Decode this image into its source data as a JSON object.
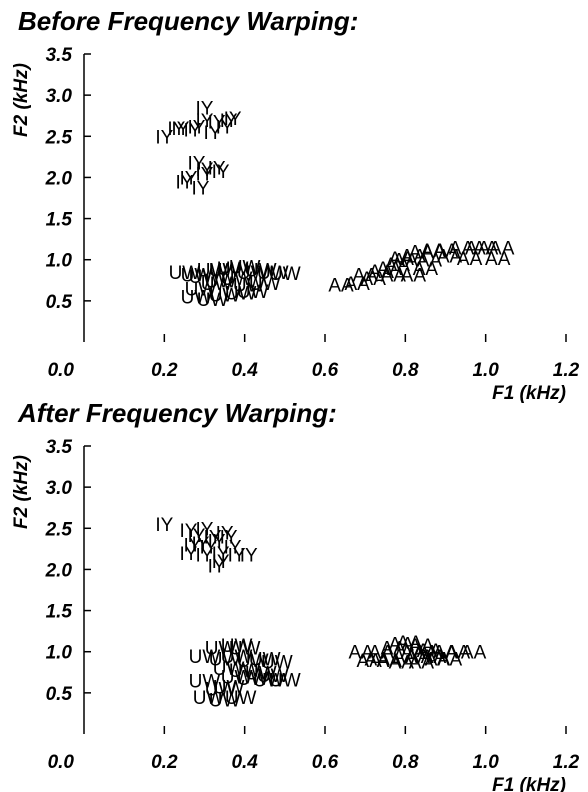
{
  "chart_data": [
    {
      "type": "scatter",
      "title": "Before Frequency Warping:",
      "xlabel": "F1 (kHz)",
      "ylabel": "F2 (kHz)",
      "xlim": [
        0.0,
        1.2
      ],
      "ylim": [
        0.0,
        3.5
      ],
      "xticks": [
        "0.0",
        "0.2",
        "0.4",
        "0.6",
        "0.8",
        "1.0",
        "1.2"
      ],
      "yticks": [
        "0.5",
        "1.0",
        "1.5",
        "2.0",
        "2.5",
        "3.0",
        "3.5"
      ],
      "series": [
        {
          "name": "IY",
          "points": [
            [
              0.3,
              2.85
            ],
            [
              0.3,
              2.7
            ],
            [
              0.36,
              2.7
            ],
            [
              0.37,
              2.72
            ],
            [
              0.24,
              2.6
            ],
            [
              0.33,
              2.68
            ],
            [
              0.28,
              2.62
            ],
            [
              0.35,
              2.62
            ],
            [
              0.2,
              2.5
            ],
            [
              0.23,
              2.6
            ],
            [
              0.32,
              2.55
            ],
            [
              0.27,
              2.58
            ],
            [
              0.3,
              2.1
            ],
            [
              0.33,
              2.12
            ],
            [
              0.28,
              2.18
            ],
            [
              0.34,
              2.08
            ],
            [
              0.26,
              2.0
            ],
            [
              0.25,
              1.95
            ],
            [
              0.29,
              1.88
            ],
            [
              0.3,
              2.05
            ]
          ]
        },
        {
          "name": "UW",
          "points": [
            [
              0.25,
              0.85
            ],
            [
              0.28,
              0.82
            ],
            [
              0.3,
              0.8
            ],
            [
              0.32,
              0.88
            ],
            [
              0.35,
              0.88
            ],
            [
              0.37,
              0.9
            ],
            [
              0.4,
              0.92
            ],
            [
              0.42,
              0.85
            ],
            [
              0.44,
              0.88
            ],
            [
              0.47,
              0.85
            ],
            [
              0.5,
              0.84
            ],
            [
              0.34,
              0.75
            ],
            [
              0.38,
              0.78
            ],
            [
              0.41,
              0.7
            ],
            [
              0.45,
              0.72
            ],
            [
              0.33,
              0.72
            ],
            [
              0.28,
              0.55
            ],
            [
              0.32,
              0.52
            ],
            [
              0.35,
              0.58
            ],
            [
              0.39,
              0.6
            ],
            [
              0.42,
              0.62
            ],
            [
              0.29,
              0.65
            ]
          ]
        },
        {
          "name": "AA",
          "points": [
            [
              0.64,
              0.7
            ],
            [
              0.68,
              0.72
            ],
            [
              0.7,
              0.82
            ],
            [
              0.74,
              0.86
            ],
            [
              0.76,
              0.9
            ],
            [
              0.78,
              0.95
            ],
            [
              0.8,
              1.0
            ],
            [
              0.82,
              1.05
            ],
            [
              0.84,
              1.1
            ],
            [
              0.87,
              1.12
            ],
            [
              0.9,
              1.12
            ],
            [
              0.94,
              1.15
            ],
            [
              0.98,
              1.15
            ],
            [
              1.0,
              1.15
            ],
            [
              1.04,
              1.15
            ],
            [
              1.03,
              1.02
            ],
            [
              0.72,
              0.78
            ],
            [
              0.77,
              0.82
            ],
            [
              0.85,
              0.9
            ],
            [
              0.79,
              1.02
            ],
            [
              0.86,
              1.0
            ],
            [
              0.91,
              1.05
            ],
            [
              0.96,
              1.02
            ],
            [
              0.82,
              0.82
            ]
          ]
        }
      ]
    },
    {
      "type": "scatter",
      "title": "After Frequency Warping:",
      "xlabel": "F1 (kHz)",
      "ylabel": "F2 (kHz)",
      "xlim": [
        0.0,
        1.2
      ],
      "ylim": [
        0.0,
        3.5
      ],
      "xticks": [
        "0.0",
        "0.2",
        "0.4",
        "0.6",
        "0.8",
        "1.0",
        "1.2"
      ],
      "yticks": [
        "0.5",
        "1.0",
        "1.5",
        "2.0",
        "2.5",
        "3.0",
        "3.5"
      ],
      "series": [
        {
          "name": "IY",
          "points": [
            [
              0.2,
              2.55
            ],
            [
              0.26,
              2.48
            ],
            [
              0.3,
              2.5
            ],
            [
              0.28,
              2.42
            ],
            [
              0.32,
              2.4
            ],
            [
              0.35,
              2.45
            ],
            [
              0.36,
              2.4
            ],
            [
              0.33,
              2.35
            ],
            [
              0.27,
              2.3
            ],
            [
              0.31,
              2.28
            ],
            [
              0.37,
              2.28
            ],
            [
              0.26,
              2.2
            ],
            [
              0.3,
              2.18
            ],
            [
              0.34,
              2.2
            ],
            [
              0.38,
              2.18
            ],
            [
              0.41,
              2.18
            ],
            [
              0.29,
              2.32
            ],
            [
              0.34,
              2.1
            ],
            [
              0.33,
              2.05
            ]
          ]
        },
        {
          "name": "UW",
          "points": [
            [
              0.34,
              1.05
            ],
            [
              0.38,
              1.08
            ],
            [
              0.4,
              1.05
            ],
            [
              0.3,
              0.95
            ],
            [
              0.35,
              0.92
            ],
            [
              0.38,
              0.95
            ],
            [
              0.42,
              0.9
            ],
            [
              0.45,
              0.92
            ],
            [
              0.48,
              0.88
            ],
            [
              0.36,
              0.8
            ],
            [
              0.4,
              0.78
            ],
            [
              0.44,
              0.75
            ],
            [
              0.47,
              0.72
            ],
            [
              0.38,
              0.7
            ],
            [
              0.42,
              0.68
            ],
            [
              0.46,
              0.66
            ],
            [
              0.5,
              0.66
            ],
            [
              0.3,
              0.65
            ],
            [
              0.34,
              0.55
            ],
            [
              0.36,
              0.58
            ],
            [
              0.31,
              0.45
            ],
            [
              0.35,
              0.42
            ],
            [
              0.39,
              0.45
            ]
          ]
        },
        {
          "name": "AA",
          "points": [
            [
              0.69,
              1.0
            ],
            [
              0.71,
              0.9
            ],
            [
              0.74,
              1.0
            ],
            [
              0.77,
              1.05
            ],
            [
              0.79,
              1.1
            ],
            [
              0.81,
              1.12
            ],
            [
              0.84,
              1.08
            ],
            [
              0.86,
              1.02
            ],
            [
              0.8,
              0.95
            ],
            [
              0.83,
              0.95
            ],
            [
              0.87,
              0.95
            ],
            [
              0.9,
              1.0
            ],
            [
              0.93,
              1.0
            ],
            [
              0.97,
              1.0
            ],
            [
              0.76,
              0.9
            ],
            [
              0.79,
              0.88
            ],
            [
              0.84,
              0.88
            ],
            [
              0.88,
              0.92
            ],
            [
              0.91,
              0.92
            ],
            [
              0.82,
              1.0
            ],
            [
              0.85,
              1.0
            ],
            [
              0.73,
              0.92
            ]
          ]
        }
      ]
    }
  ]
}
